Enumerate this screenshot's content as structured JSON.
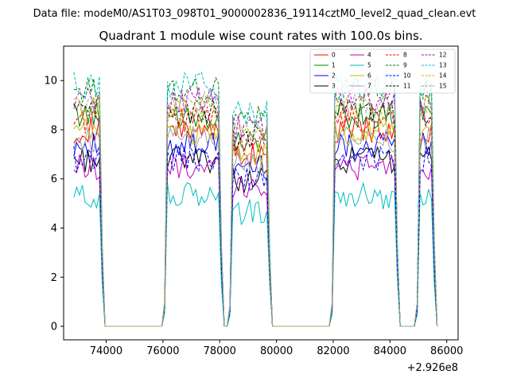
{
  "suptitle": "Data file: modeM0/AS1T03_098T01_9000002836_19114cztM0_level2_quad_clean.evt",
  "chart_data": {
    "type": "line",
    "title": "Quadrant 1 module wise count rates with 100.0s bins.",
    "xlabel": "",
    "ylabel": "",
    "x_offset_label": "+2.926e8",
    "xlim": [
      72500,
      86400
    ],
    "ylim": [
      -0.55,
      11.4
    ],
    "x_ticks": [
      74000,
      76000,
      78000,
      80000,
      82000,
      84000,
      86000
    ],
    "x_tick_labels": [
      "74000",
      "76000",
      "78000",
      "80000",
      "82000",
      "84000",
      "86000"
    ],
    "y_ticks": [
      0,
      2,
      4,
      6,
      8,
      10
    ],
    "y_tick_labels": [
      "0",
      "2",
      "4",
      "6",
      "8",
      "10"
    ],
    "grid": false,
    "legend_position": "top-right",
    "legend_columns": 4,
    "base_rate": [
      8.0,
      8.6,
      7.4,
      6.8,
      6.5,
      5.3,
      7.9,
      7.6,
      8.4,
      9.6,
      6.8,
      8.7,
      9.2,
      9.8,
      8.9,
      9.0
    ],
    "series": [
      {
        "name": "0",
        "color": "#ff0000",
        "dash": "solid"
      },
      {
        "name": "1",
        "color": "#008000",
        "dash": "solid"
      },
      {
        "name": "2",
        "color": "#0000ff",
        "dash": "solid"
      },
      {
        "name": "3",
        "color": "#000000",
        "dash": "solid"
      },
      {
        "name": "4",
        "color": "#bf00bf",
        "dash": "solid"
      },
      {
        "name": "5",
        "color": "#00bfbf",
        "dash": "solid"
      },
      {
        "name": "6",
        "color": "#bfbf00",
        "dash": "solid"
      },
      {
        "name": "7",
        "color": "#a0a0a0",
        "dash": "solid"
      },
      {
        "name": "8",
        "color": "#ff0000",
        "dash": "dashed"
      },
      {
        "name": "9",
        "color": "#008000",
        "dash": "dashed"
      },
      {
        "name": "10",
        "color": "#0000ff",
        "dash": "dashed"
      },
      {
        "name": "11",
        "color": "#000000",
        "dash": "dashed"
      },
      {
        "name": "12",
        "color": "#bf00bf",
        "dash": "dashed"
      },
      {
        "name": "13",
        "color": "#00bfbf",
        "dash": "dashed"
      },
      {
        "name": "14",
        "color": "#bfbf00",
        "dash": "dashed"
      },
      {
        "name": "15",
        "color": "#a0a0a0",
        "dash": "dashed"
      }
    ],
    "time_bins": {
      "start": 72860,
      "end": 85660,
      "step": 100
    },
    "gti_segments": [
      [
        72860,
        73860
      ],
      [
        76060,
        78060
      ],
      [
        78360,
        79760
      ],
      [
        81960,
        84260
      ],
      [
        84960,
        85560
      ]
    ],
    "segment_rate_factor": [
      1.0,
      1.0,
      0.88,
      1.0,
      1.0
    ]
  }
}
